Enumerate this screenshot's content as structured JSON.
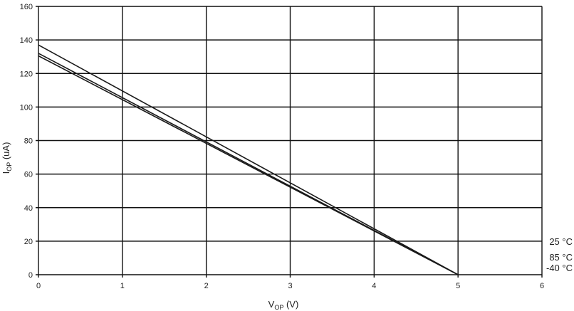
{
  "chart_data": {
    "type": "line",
    "xlabel": {
      "main": "V",
      "sub": "OP",
      "rest": " (V)"
    },
    "ylabel": {
      "main": "I",
      "sub": "OP",
      "rest": " (uA)"
    },
    "xlim": [
      0,
      6
    ],
    "ylim": [
      0,
      160
    ],
    "xticks": [
      0,
      1,
      2,
      3,
      4,
      5,
      6
    ],
    "yticks": [
      0,
      20,
      40,
      60,
      80,
      100,
      120,
      140,
      160
    ],
    "grid": true,
    "series": [
      {
        "name": "25 °C",
        "x": [
          0,
          5
        ],
        "y": [
          137,
          0
        ]
      },
      {
        "name": "85 °C",
        "x": [
          0,
          5
        ],
        "y": [
          132,
          0
        ]
      },
      {
        "name": "-40 °C",
        "x": [
          0,
          5
        ],
        "y": [
          130.5,
          0
        ]
      }
    ],
    "line_color": "#1a1a1a"
  }
}
